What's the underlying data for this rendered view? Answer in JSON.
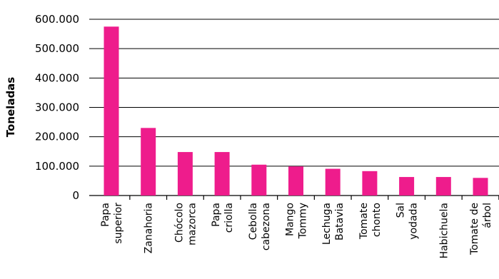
{
  "chart_data": {
    "type": "bar",
    "title": "",
    "xlabel": "",
    "ylabel": "Toneladas",
    "ylim": [
      0,
      600000
    ],
    "yticks": [
      0,
      100000,
      200000,
      300000,
      400000,
      500000,
      600000
    ],
    "ytick_labels": [
      "0",
      "100.000",
      "200.000",
      "300.000",
      "400.000",
      "500.000",
      "600.000"
    ],
    "grid": true,
    "bar_color": "#ee1c8c",
    "categories": [
      [
        "Papa",
        "superior"
      ],
      [
        "Zanahoria"
      ],
      [
        "Chócolo",
        "mazorca"
      ],
      [
        "Papa",
        "criolla"
      ],
      [
        "Cebolla",
        "cabezona"
      ],
      [
        "Mango",
        "Tommy"
      ],
      [
        "Lechuga",
        "Batavia"
      ],
      [
        "Tomate",
        "chonto"
      ],
      [
        "Sal",
        "yodada"
      ],
      [
        "Habichuela"
      ],
      [
        "Tomate de",
        "árbol"
      ]
    ],
    "values": [
      575000,
      230000,
      148000,
      148000,
      105000,
      99000,
      91000,
      83000,
      63000,
      63000,
      60000
    ]
  }
}
